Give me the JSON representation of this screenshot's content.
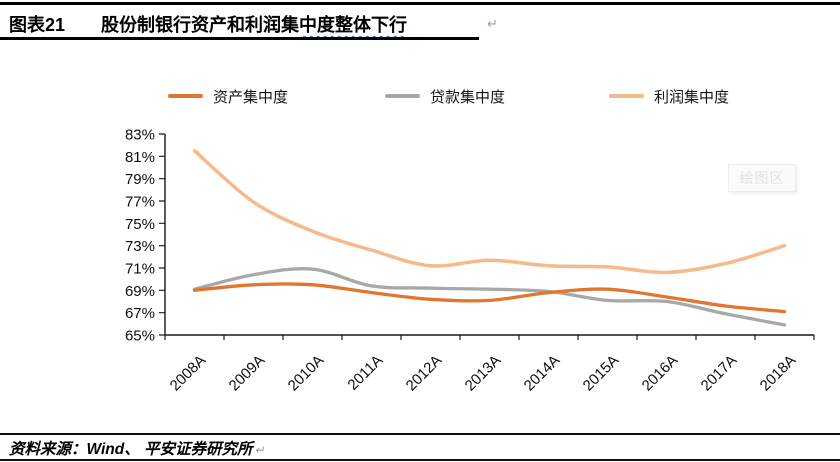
{
  "header": {
    "figure_label": "图表21",
    "title_plain": "股份制银行资产和利润集",
    "title_wavy": "中度整体下行",
    "paragraph_mark": "↵"
  },
  "chart_data": {
    "type": "line",
    "categories": [
      "2008A",
      "2009A",
      "2010A",
      "2011A",
      "2012A",
      "2013A",
      "2014A",
      "2015A",
      "2016A",
      "2017A",
      "2018A"
    ],
    "series": [
      {
        "name": "资产集中度",
        "color": "#E0762F",
        "values": [
          69.0,
          69.5,
          69.5,
          68.8,
          68.2,
          68.1,
          68.8,
          69.1,
          68.4,
          67.6,
          67.1
        ]
      },
      {
        "name": "贷款集中度",
        "color": "#A8A8A8",
        "values": [
          69.1,
          70.4,
          70.9,
          69.4,
          69.2,
          69.1,
          68.9,
          68.1,
          68.0,
          66.9,
          65.9
        ]
      },
      {
        "name": "利润集中度",
        "color": "#F5B98C",
        "values": [
          81.5,
          76.9,
          74.3,
          72.6,
          71.2,
          71.7,
          71.2,
          71.1,
          70.6,
          71.4,
          73.0
        ]
      }
    ],
    "ylim": [
      65,
      83
    ],
    "y_tick_step": 2,
    "y_ticks": [
      "83%",
      "81%",
      "79%",
      "77%",
      "75%",
      "73%",
      "71%",
      "69%",
      "67%",
      "65%"
    ],
    "grid": "off",
    "legend_position": "top",
    "watermark": "绘图区"
  },
  "footer": {
    "source": "资料来源：Wind、 平安证券研究所",
    "paragraph_mark": "↵"
  }
}
